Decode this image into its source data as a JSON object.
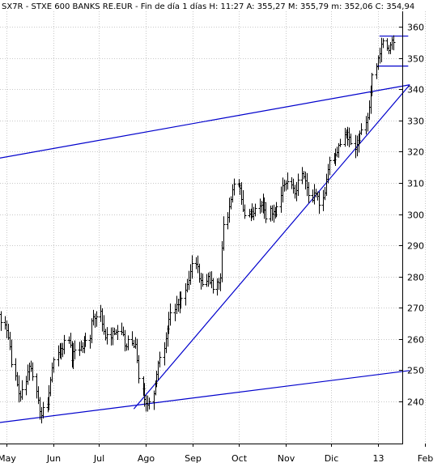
{
  "header": {
    "text": "SX7R - STXE 600 BANKS RE.EUR - Fin de día 1 días H: 11:27  A: 355,27  M: 355,79  m: 352,06  C: 354,94"
  },
  "chart_data": {
    "type": "ohlc",
    "title": "SX7R - STXE 600 BANKS RE.EUR - Fin de día 1 días H: 11:27  A: 355,27  M: 355,79  m: 352,06  C: 354,94",
    "ylim": [
      230,
      364
    ],
    "y_ticks": [
      240,
      250,
      260,
      270,
      280,
      290,
      300,
      310,
      320,
      330,
      340,
      350,
      360
    ],
    "x_ticks": [
      "May",
      "Jun",
      "Jul",
      "Ago",
      "Sep",
      "Oct",
      "Nov",
      "Dic",
      "13",
      "Feb"
    ],
    "grid": true,
    "legend": "none",
    "colors": {
      "price": "#000000",
      "trendline": "#0000cc",
      "grid": "#c8c8c8"
    },
    "series": [
      {
        "values": [
          262.5,
          266.2,
          268.1,
          265.3,
          264.6,
          262.7,
          260.5,
          257.6,
          251.9,
          248.4,
          245.5,
          242.6,
          241.6,
          243.9,
          246.6,
          249.6,
          251.4,
          250.6,
          248.0,
          243.4,
          240.6,
          237.0,
          235.7,
          238.1,
          239.3,
          242.8,
          246.9,
          250.8,
          253.4,
          255.7,
          255.2,
          257.1,
          256.8,
          259.6,
          259.6,
          258.1,
          253.3,
          256.1,
          256.7,
          256.7,
          257.6,
          257.0,
          259.8,
          259.8,
          260.1,
          266.0,
          267.3,
          266.6,
          267.2,
          268.9,
          264.9,
          262.6,
          260.5,
          261.5,
          260.6,
          262.6,
          261.9,
          262.3,
          262.6,
          262.2,
          261.6,
          257.8,
          257.7,
          260.0,
          258.7,
          257.7,
          258.5,
          253.1,
          247.4,
          244.2,
          240.7,
          239.6,
          238.9,
          240.0,
          242.7,
          245.9,
          248.8,
          252.4,
          254.3,
          257.1,
          260.3,
          263.4,
          266.5,
          268.6,
          269.6,
          271.1,
          271.0,
          272.7,
          273.3,
          275.7,
          277.6,
          278.9,
          281.8,
          284.4,
          284.0,
          283.4,
          279.5,
          278.8,
          277.7,
          278.6,
          280.2,
          278.1,
          278.8,
          276.1,
          278.4,
          278.1,
          279.7,
          289.3,
          296.7,
          299.2,
          302.5,
          304.9,
          307.8,
          309.8,
          309.2,
          308.5,
          304.9,
          301.5,
          299.6,
          300.1,
          300.8,
          299.3,
          300.4,
          301.9,
          302.6,
          303.1,
          303.8,
          301.3,
          298.7,
          301.9,
          300.2,
          301.0,
          300.0,
          302.5,
          306.0,
          309.2,
          309.8,
          309.9,
          310.4,
          309.4,
          308.5,
          306.5,
          307.7,
          311.1,
          313.0,
          312.1,
          310.7,
          308.6,
          306.2,
          304.5,
          306.9,
          306.5,
          305.8,
          303.0,
          305.2,
          306.8,
          311.2,
          314.3,
          317.2,
          317.6,
          319.0,
          319.8,
          322.1,
          322.4,
          325.5,
          326.3,
          324.1,
          324.8,
          322.7,
          320.9,
          322.5,
          323.8,
          326.1,
          327.0,
          329.3,
          331.1,
          334.4,
          338.9,
          344.6,
          347.4,
          350.1,
          351.5,
          354.6,
          355.5,
          353.2,
          352.6,
          354.2,
          355.9,
          355.0
        ]
      }
    ],
    "trendlines": [
      {
        "from": [
          "2012-04-24",
          317.7
        ],
        "to": [
          "2013-01-22",
          341.4
        ]
      },
      {
        "from": [
          "2012-04-24",
          233.1
        ],
        "to": [
          "2013-01-22",
          249.9
        ]
      },
      {
        "from": [
          "2012-07-24",
          237.6
        ],
        "to": [
          "2013-01-22",
          341.4
        ]
      }
    ],
    "horizontal_lines": [
      {
        "y": 357.0,
        "from": "2013-01-02",
        "to": "2013-01-21"
      },
      {
        "y": 347.4,
        "from": "2012-12-31",
        "to": "2013-01-21"
      }
    ]
  }
}
